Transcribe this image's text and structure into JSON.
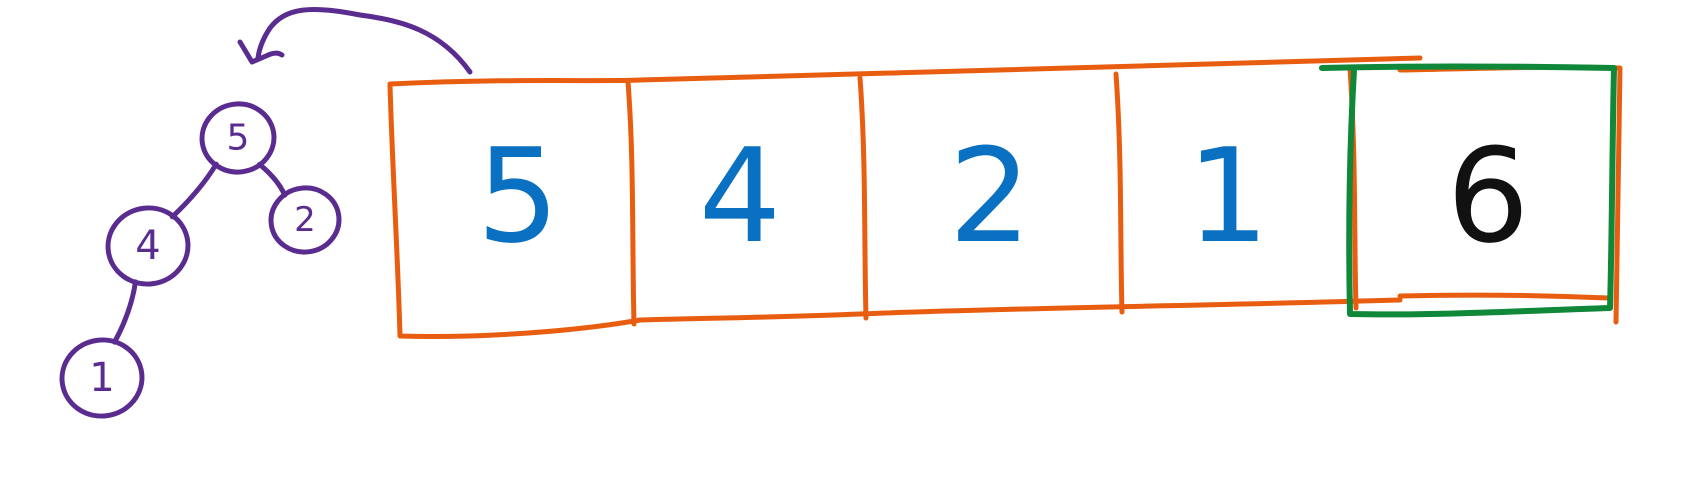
{
  "colors": {
    "array_border": "#E85D10",
    "array_digits": "#0A70C2",
    "sorted_border": "#10883A",
    "sorted_digit": "#111111",
    "tree": "#5B2C8F"
  },
  "array": {
    "cells": [
      {
        "value": "5",
        "sorted": false
      },
      {
        "value": "4",
        "sorted": false
      },
      {
        "value": "2",
        "sorted": false
      },
      {
        "value": "1",
        "sorted": false
      },
      {
        "value": "6",
        "sorted": true
      }
    ]
  },
  "tree": {
    "nodes": [
      {
        "id": "root",
        "value": "5"
      },
      {
        "id": "left",
        "value": "4"
      },
      {
        "id": "right",
        "value": "2"
      },
      {
        "id": "left-left",
        "value": "1"
      }
    ],
    "edges": [
      [
        "root",
        "left"
      ],
      [
        "root",
        "right"
      ],
      [
        "left",
        "left-left"
      ]
    ]
  }
}
